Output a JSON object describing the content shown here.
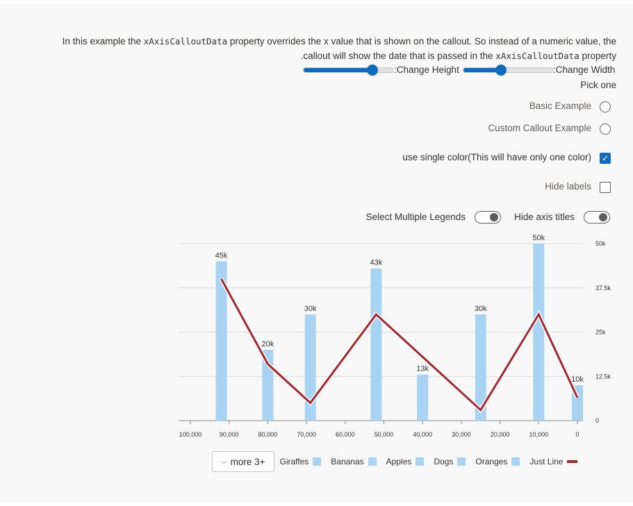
{
  "description": {
    "part1": "In this example the ",
    "code1": "xAxisCalloutData",
    "part2": " property overrides the x value that is shown on the callout. So instead of a numeric value, the",
    "part3": ".callout will show the date that is passed in the ",
    "code2": "xAxisCalloutData",
    "part4": " property"
  },
  "controls": {
    "height_label": ":Change Height",
    "width_label": ":Change Width",
    "height_value": 0.77,
    "width_value": 0.42,
    "pick_one": "Pick one",
    "options": [
      "Basic Example",
      "Custom Callout Example"
    ],
    "single_color_label": "use single color(This will have only one color)",
    "single_color_checked": true,
    "hide_labels_label": "Hide labels",
    "hide_labels_checked": false,
    "multi_legends_label": "Select Multiple Legends",
    "hide_axis_titles_label": "Hide axis titles"
  },
  "chart_data": {
    "type": "bar",
    "bar_color": "#a9d3f2",
    "line_color": "#a4262c",
    "x_ticks": [
      "100,000",
      "90,000",
      "80,000",
      "70,000",
      "60,000",
      "50,000",
      "40,000",
      "30,000",
      "20,000",
      "10,000",
      "0"
    ],
    "x_domain": [
      100000,
      0
    ],
    "y_ticks": [
      "0",
      "12.5k",
      "25k",
      "37.5k",
      "50k"
    ],
    "y_domain": [
      0,
      50000
    ],
    "bars": [
      {
        "x": 92000,
        "value": 45000,
        "label": "45k"
      },
      {
        "x": 80000,
        "value": 20000,
        "label": "20k"
      },
      {
        "x": 69000,
        "value": 30000,
        "label": "30k"
      },
      {
        "x": 52000,
        "value": 43000,
        "label": "43k"
      },
      {
        "x": 40000,
        "value": 13000,
        "label": "13k"
      },
      {
        "x": 25000,
        "value": 30000,
        "label": "30k"
      },
      {
        "x": 10000,
        "value": 50000,
        "label": "50k"
      },
      {
        "x": 0,
        "value": 10000,
        "label": "10k"
      }
    ],
    "line": {
      "name": "Just Line",
      "points": [
        {
          "x": 92000,
          "y": 40000
        },
        {
          "x": 80000,
          "y": 16000
        },
        {
          "x": 69000,
          "y": 5000
        },
        {
          "x": 52000,
          "y": 30000
        },
        {
          "x": 25000,
          "y": 3000
        },
        {
          "x": 10000,
          "y": 30000
        },
        {
          "x": 0,
          "y": 6500
        }
      ]
    },
    "legends": [
      "Giraffes",
      "Bananas",
      "Apples",
      "Dogs",
      "Oranges",
      "Just Line"
    ],
    "more_label": "more 3+"
  }
}
